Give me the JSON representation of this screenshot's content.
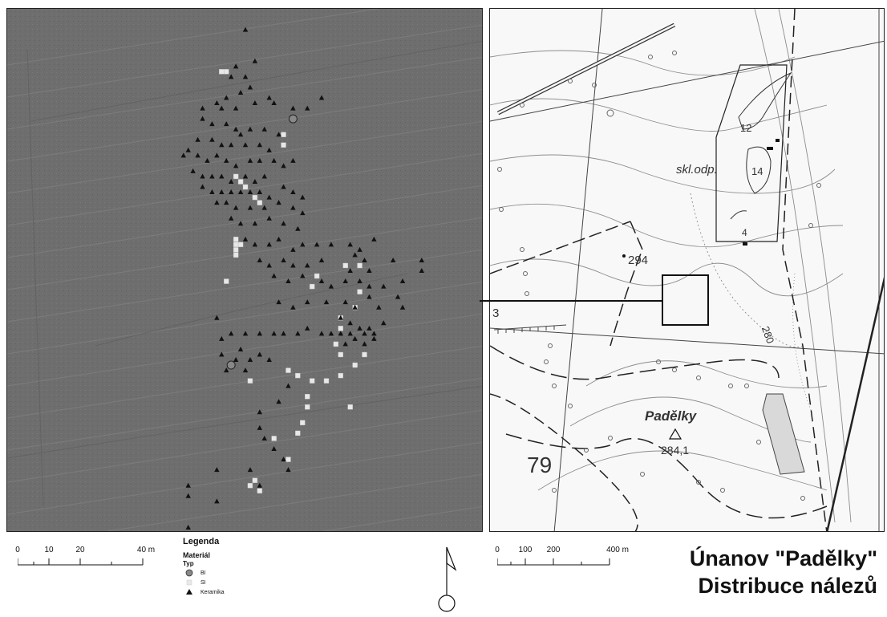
{
  "left_map": {
    "ground_color": "#6e6e6e",
    "findings": {
      "bi": [
        [
          60,
          21
        ],
        [
          47,
          68
        ]
      ],
      "si": [
        [
          45,
          12
        ],
        [
          46,
          12
        ],
        [
          58,
          24
        ],
        [
          58,
          26
        ],
        [
          48,
          32
        ],
        [
          49,
          33
        ],
        [
          50,
          34
        ],
        [
          52,
          36
        ],
        [
          53,
          37
        ],
        [
          48,
          44
        ],
        [
          48,
          45
        ],
        [
          49,
          45
        ],
        [
          48,
          46
        ],
        [
          48,
          47
        ],
        [
          46,
          52
        ],
        [
          64,
          53
        ],
        [
          65,
          51
        ],
        [
          74,
          49
        ],
        [
          71,
          49
        ],
        [
          74,
          54
        ],
        [
          73,
          57
        ],
        [
          70,
          59
        ],
        [
          70,
          61
        ],
        [
          69,
          64
        ],
        [
          70,
          66
        ],
        [
          51,
          71
        ],
        [
          59,
          69
        ],
        [
          61,
          70
        ],
        [
          64,
          71
        ],
        [
          67,
          71
        ],
        [
          70,
          70
        ],
        [
          73,
          68
        ],
        [
          75,
          66
        ],
        [
          63,
          74
        ],
        [
          63,
          76
        ],
        [
          62,
          79
        ],
        [
          61,
          81
        ],
        [
          72,
          76
        ],
        [
          56,
          82
        ],
        [
          59,
          86
        ],
        [
          51,
          91
        ],
        [
          52,
          90
        ],
        [
          53,
          92
        ]
      ],
      "ker": [
        [
          50,
          4
        ],
        [
          48,
          11
        ],
        [
          52,
          10
        ],
        [
          47,
          13
        ],
        [
          50,
          13
        ],
        [
          51,
          15
        ],
        [
          55,
          17
        ],
        [
          49,
          16
        ],
        [
          46,
          17
        ],
        [
          44,
          18
        ],
        [
          41,
          19
        ],
        [
          45,
          19
        ],
        [
          48,
          19
        ],
        [
          52,
          18
        ],
        [
          56,
          18
        ],
        [
          60,
          19
        ],
        [
          63,
          19
        ],
        [
          66,
          17
        ],
        [
          41,
          21
        ],
        [
          43,
          22
        ],
        [
          46,
          22
        ],
        [
          48,
          23
        ],
        [
          51,
          23
        ],
        [
          54,
          23
        ],
        [
          57,
          24
        ],
        [
          49,
          24
        ],
        [
          40,
          25
        ],
        [
          43,
          25
        ],
        [
          45,
          26
        ],
        [
          47,
          26
        ],
        [
          50,
          26
        ],
        [
          53,
          26
        ],
        [
          55,
          27
        ],
        [
          38,
          27
        ],
        [
          37,
          28
        ],
        [
          40,
          28
        ],
        [
          42,
          29
        ],
        [
          44,
          28
        ],
        [
          46,
          29
        ],
        [
          48,
          30
        ],
        [
          51,
          29
        ],
        [
          53,
          29
        ],
        [
          56,
          29
        ],
        [
          58,
          30
        ],
        [
          60,
          29
        ],
        [
          39,
          31
        ],
        [
          41,
          32
        ],
        [
          43,
          32
        ],
        [
          45,
          32
        ],
        [
          47,
          33
        ],
        [
          50,
          32
        ],
        [
          52,
          33
        ],
        [
          54,
          32
        ],
        [
          41,
          34
        ],
        [
          43,
          35
        ],
        [
          45,
          35
        ],
        [
          47,
          35
        ],
        [
          49,
          35
        ],
        [
          51,
          35
        ],
        [
          53,
          35
        ],
        [
          55,
          36
        ],
        [
          58,
          34
        ],
        [
          60,
          35
        ],
        [
          62,
          36
        ],
        [
          44,
          37
        ],
        [
          46,
          37
        ],
        [
          48,
          38
        ],
        [
          51,
          38
        ],
        [
          54,
          38
        ],
        [
          57,
          37
        ],
        [
          60,
          38
        ],
        [
          62,
          39
        ],
        [
          47,
          40
        ],
        [
          49,
          41
        ],
        [
          52,
          41
        ],
        [
          55,
          40
        ],
        [
          58,
          41
        ],
        [
          61,
          42
        ],
        [
          50,
          44
        ],
        [
          52,
          45
        ],
        [
          55,
          45
        ],
        [
          57,
          44
        ],
        [
          60,
          46
        ],
        [
          62,
          45
        ],
        [
          65,
          45
        ],
        [
          68,
          45
        ],
        [
          72,
          45
        ],
        [
          74,
          46
        ],
        [
          77,
          44
        ],
        [
          73,
          47
        ],
        [
          75,
          48
        ],
        [
          72,
          50
        ],
        [
          76,
          50
        ],
        [
          81,
          48
        ],
        [
          87,
          48
        ],
        [
          87,
          50
        ],
        [
          66,
          48
        ],
        [
          63,
          49
        ],
        [
          60,
          49
        ],
        [
          58,
          48
        ],
        [
          55,
          49
        ],
        [
          53,
          48
        ],
        [
          56,
          51
        ],
        [
          59,
          52
        ],
        [
          62,
          51
        ],
        [
          66,
          52
        ],
        [
          68,
          53
        ],
        [
          71,
          52
        ],
        [
          74,
          52
        ],
        [
          76,
          53
        ],
        [
          79,
          53
        ],
        [
          83,
          52
        ],
        [
          82,
          55
        ],
        [
          76,
          55
        ],
        [
          71,
          56
        ],
        [
          67,
          56
        ],
        [
          63,
          56
        ],
        [
          60,
          57
        ],
        [
          57,
          56
        ],
        [
          73,
          57
        ],
        [
          78,
          57
        ],
        [
          83,
          57
        ],
        [
          70,
          59
        ],
        [
          72,
          60
        ],
        [
          74,
          61
        ],
        [
          76,
          61
        ],
        [
          79,
          60
        ],
        [
          77,
          62
        ],
        [
          75,
          62
        ],
        [
          72,
          62
        ],
        [
          70,
          62
        ],
        [
          68,
          62
        ],
        [
          66,
          62
        ],
        [
          63,
          61
        ],
        [
          61,
          62
        ],
        [
          58,
          62
        ],
        [
          56,
          62
        ],
        [
          73,
          63
        ],
        [
          75,
          64
        ],
        [
          77,
          63
        ],
        [
          71,
          64
        ],
        [
          44,
          59
        ],
        [
          47,
          62
        ],
        [
          50,
          62
        ],
        [
          53,
          62
        ],
        [
          45,
          63
        ],
        [
          49,
          65
        ],
        [
          45,
          66
        ],
        [
          48,
          67
        ],
        [
          51,
          67
        ],
        [
          50,
          69
        ],
        [
          46,
          69
        ],
        [
          53,
          66
        ],
        [
          55,
          67
        ],
        [
          59,
          72
        ],
        [
          57,
          75
        ],
        [
          53,
          77
        ],
        [
          53,
          80
        ],
        [
          54,
          82
        ],
        [
          56,
          84
        ],
        [
          58,
          86
        ],
        [
          59,
          88
        ],
        [
          51,
          88
        ],
        [
          53,
          91
        ],
        [
          44,
          88
        ],
        [
          44,
          94
        ],
        [
          38,
          91
        ],
        [
          38,
          93
        ],
        [
          38,
          99
        ]
      ]
    }
  },
  "right_map": {
    "labels": {
      "skl_odp": "skl.odp.",
      "n12": "12",
      "n14": "14",
      "n4": "4",
      "e294": "294",
      "n3": "3",
      "c280": "280",
      "padelky": "Padělky",
      "e2841": "284,1",
      "grid79": "79"
    }
  },
  "left_scale": {
    "ticks": [
      "0",
      "10",
      "20",
      "40 m"
    ]
  },
  "right_scale": {
    "ticks": [
      "0",
      "100",
      "200",
      "400 m"
    ]
  },
  "legend": {
    "title": "Legenda",
    "heading": "Materiál",
    "subheading": "Typ",
    "items": [
      {
        "label": "BI",
        "symbol": "circle-grey"
      },
      {
        "label": "SI",
        "symbol": "square-white"
      },
      {
        "label": "Keramika",
        "symbol": "triangle-black"
      }
    ]
  },
  "north_arrow": {
    "icon": "north-arrow-icon"
  },
  "title": {
    "line1": "Únanov \"Padělky\"",
    "line2": "Distribuce nálezů"
  },
  "colors": {
    "bi": "#888888",
    "si": "#e8e8e8",
    "ker": "#111111",
    "ground": "#6e6e6e",
    "contour": "#8c8c8c"
  }
}
